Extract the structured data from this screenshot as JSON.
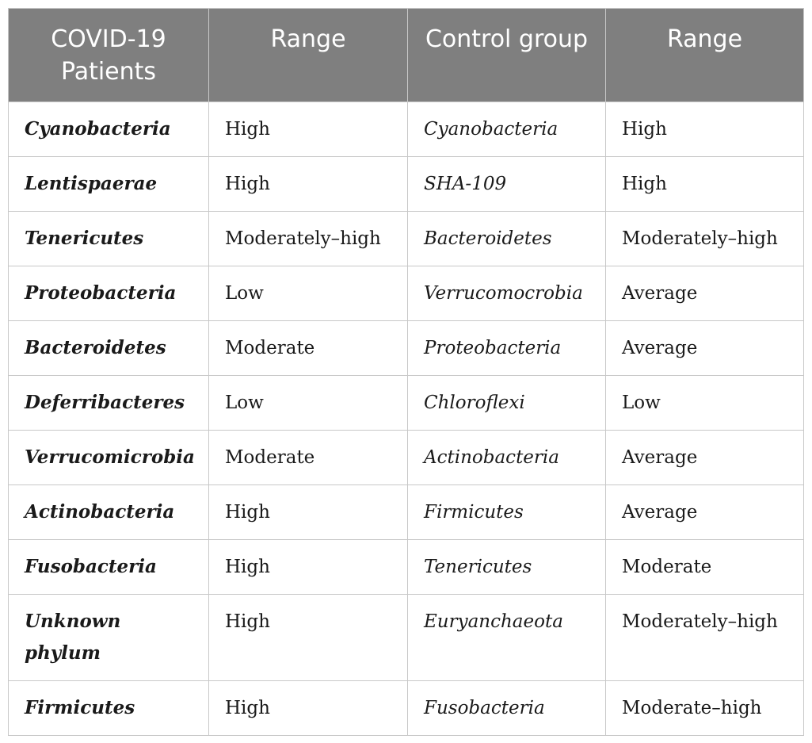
{
  "headers": [
    "COVID-19 Patients",
    "Range",
    "Control group",
    "Range"
  ],
  "rows": [
    {
      "covid_phylum": "Cyanobacteria",
      "covid_range": "High",
      "control_phylum": "Cyanobacteria",
      "control_range": "High"
    },
    {
      "covid_phylum": "Lentispaerae",
      "covid_range": "High",
      "control_phylum": "SHA-109",
      "control_range": "High"
    },
    {
      "covid_phylum": "Tenericutes",
      "covid_range": "Moderately–high",
      "control_phylum": "Bacteroidetes",
      "control_range": "Moderately–high"
    },
    {
      "covid_phylum": "Proteobacteria",
      "covid_range": "Low",
      "control_phylum": "Verrucomocrobia",
      "control_range": "Average"
    },
    {
      "covid_phylum": "Bacteroidetes",
      "covid_range": "Moderate",
      "control_phylum": "Proteobacteria",
      "control_range": "Average"
    },
    {
      "covid_phylum": "Deferribacteres",
      "covid_range": "Low",
      "control_phylum": "Chloroflexi",
      "control_range": "Low"
    },
    {
      "covid_phylum": "Verrucomicrobia",
      "covid_range": "Moderate",
      "control_phylum": "Actinobacteria",
      "control_range": "Average"
    },
    {
      "covid_phylum": "Actinobacteria",
      "covid_range": "High",
      "control_phylum": "Firmicutes",
      "control_range": "Average"
    },
    {
      "covid_phylum": "Fusobacteria",
      "covid_range": "High",
      "control_phylum": "Tenericutes",
      "control_range": "Moderate"
    },
    {
      "covid_phylum": "Unknown phylum",
      "covid_range": "High",
      "control_phylum": "Euryanchaeota",
      "control_range": "Moderately–high"
    },
    {
      "covid_phylum": "Firmicutes",
      "covid_range": "High",
      "control_phylum": "Fusobacteria",
      "control_range": "Moderate–high"
    }
  ]
}
